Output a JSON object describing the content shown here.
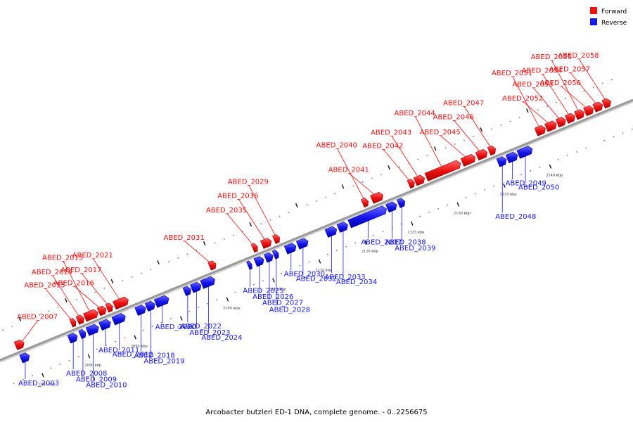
{
  "caption": "Arcobacter butzleri ED-1 DNA, complete genome. - 0..2256675",
  "colors": {
    "forward": "#ee1111",
    "reverse": "#1717ee",
    "backbone": "#9a9a9a"
  },
  "legend": {
    "forward": "Forward",
    "reverse": "Reverse"
  },
  "ticks": [
    {
      "kbp": 2085,
      "label": "2085 kbp"
    },
    {
      "kbp": 2090,
      "label": "2090 kbp"
    },
    {
      "kbp": 2095,
      "label": "2095 kbp"
    },
    {
      "kbp": 2100,
      "label": "2100 kbp"
    },
    {
      "kbp": 2105,
      "label": "2105 kbp"
    },
    {
      "kbp": 2110,
      "label": "2110 kbp"
    },
    {
      "kbp": 2115,
      "label": "2115 kbp"
    },
    {
      "kbp": 2120,
      "label": "2120 kbp"
    },
    {
      "kbp": 2125,
      "label": "2125 kbp"
    },
    {
      "kbp": 2130,
      "label": "2130 kbp"
    },
    {
      "kbp": 2135,
      "label": "2135 kbp"
    },
    {
      "kbp": 2140,
      "label": "2140 kbp"
    }
  ],
  "genes": [
    {
      "name": "ABED_2003",
      "strand": "reverse",
      "start": 2083.6,
      "end": 2084.5
    },
    {
      "name": "ABED_2007",
      "strand": "forward",
      "start": 2083.6,
      "end": 2084.5
    },
    {
      "name": "ABED_2008",
      "strand": "reverse",
      "start": 2088.8,
      "end": 2089.7
    },
    {
      "name": "ABED_2009",
      "strand": "reverse",
      "start": 2090.0,
      "end": 2090.6
    },
    {
      "name": "ABED_2010",
      "strand": "reverse",
      "start": 2090.8,
      "end": 2092.0
    },
    {
      "name": "ABED_2011",
      "strand": "reverse",
      "start": 2092.2,
      "end": 2093.3
    },
    {
      "name": "ABED_2012",
      "strand": "reverse",
      "start": 2093.6,
      "end": 2094.9
    },
    {
      "name": "ABED_2013",
      "strand": "forward",
      "start": 2089.6,
      "end": 2090.1
    },
    {
      "name": "ABED_2014",
      "strand": "forward",
      "start": 2090.3,
      "end": 2091.0
    },
    {
      "name": "ABED_2015",
      "strand": "forward",
      "start": 2091.1,
      "end": 2092.5
    },
    {
      "name": "ABED_2016",
      "strand": "forward",
      "start": 2092.6,
      "end": 2093.4
    },
    {
      "name": "ABED_2017",
      "strand": "forward",
      "start": 2093.5,
      "end": 2094.1
    },
    {
      "name": "ABED_2018",
      "strand": "reverse",
      "start": 2096.1,
      "end": 2097.1
    },
    {
      "name": "ABED_2019",
      "strand": "reverse",
      "start": 2097.2,
      "end": 2098.1
    },
    {
      "name": "ABED_2020",
      "strand": "reverse",
      "start": 2098.2,
      "end": 2099.6
    },
    {
      "name": "ABED_2021",
      "strand": "forward",
      "start": 2094.3,
      "end": 2095.8
    },
    {
      "name": "ABED_2022",
      "strand": "reverse",
      "start": 2101.3,
      "end": 2102.0
    },
    {
      "name": "ABED_2023",
      "strand": "reverse",
      "start": 2102.1,
      "end": 2103.1
    },
    {
      "name": "ABED_2024",
      "strand": "reverse",
      "start": 2103.2,
      "end": 2104.6
    },
    {
      "name": "ABED_2025",
      "strand": "reverse",
      "start": 2108.2,
      "end": 2108.6
    },
    {
      "name": "ABED_2026",
      "strand": "reverse",
      "start": 2109.0,
      "end": 2109.9
    },
    {
      "name": "ABED_2027",
      "strand": "reverse",
      "start": 2110.1,
      "end": 2110.9
    },
    {
      "name": "ABED_2028",
      "strand": "reverse",
      "start": 2111.0,
      "end": 2111.5
    },
    {
      "name": "ABED_2029",
      "strand": "forward",
      "start": 2111.6,
      "end": 2112.2
    },
    {
      "name": "ABED_2030",
      "strand": "reverse",
      "start": 2112.3,
      "end": 2113.4
    },
    {
      "name": "ABED_2031",
      "strand": "forward",
      "start": 2104.6,
      "end": 2105.3
    },
    {
      "name": "ABED_2032",
      "strand": "reverse",
      "start": 2113.6,
      "end": 2114.7
    },
    {
      "name": "ABED_2033",
      "strand": "reverse",
      "start": 2116.7,
      "end": 2117.8
    },
    {
      "name": "ABED_2034",
      "strand": "reverse",
      "start": 2118.0,
      "end": 2119.0
    },
    {
      "name": "ABED_2035",
      "strand": "forward",
      "start": 2109.3,
      "end": 2109.8
    },
    {
      "name": "ABED_2036",
      "strand": "forward",
      "start": 2110.3,
      "end": 2111.3
    },
    {
      "name": "ABED_2037",
      "strand": "reverse",
      "start": 2119.2,
      "end": 2123.2
    },
    {
      "name": "ABED_2038",
      "strand": "reverse",
      "start": 2123.3,
      "end": 2124.3
    },
    {
      "name": "ABED_2039",
      "strand": "reverse",
      "start": 2124.5,
      "end": 2125.2
    },
    {
      "name": "ABED_2040",
      "strand": "forward",
      "start": 2121.2,
      "end": 2121.8
    },
    {
      "name": "ABED_2041",
      "strand": "forward",
      "start": 2122.2,
      "end": 2123.4
    },
    {
      "name": "ABED_2042",
      "strand": "forward",
      "start": 2126.2,
      "end": 2126.8
    },
    {
      "name": "ABED_2043",
      "strand": "forward",
      "start": 2126.9,
      "end": 2127.9
    },
    {
      "name": "ABED_2044",
      "strand": "forward",
      "start": 2128.1,
      "end": 2131.8
    },
    {
      "name": "ABED_2045",
      "strand": "forward",
      "start": 2132.0,
      "end": 2133.4
    },
    {
      "name": "ABED_2046",
      "strand": "forward",
      "start": 2133.6,
      "end": 2134.7
    },
    {
      "name": "ABED_2047",
      "strand": "forward",
      "start": 2134.9,
      "end": 2135.6
    },
    {
      "name": "ABED_2048",
      "strand": "reverse",
      "start": 2135.3,
      "end": 2136.2
    },
    {
      "name": "ABED_2049",
      "strand": "reverse",
      "start": 2136.3,
      "end": 2137.4
    },
    {
      "name": "ABED_2050",
      "strand": "reverse",
      "start": 2137.5,
      "end": 2139.0
    },
    {
      "name": "ABED_2051",
      "strand": "forward",
      "start": 2140.0,
      "end": 2141.0
    },
    {
      "name": "ABED_2052",
      "strand": "forward",
      "start": 2141.1,
      "end": 2142.2
    },
    {
      "name": "ABED_2053",
      "strand": "forward",
      "start": 2142.3,
      "end": 2143.2
    },
    {
      "name": "ABED_2054",
      "strand": "forward",
      "start": 2143.3,
      "end": 2144.2
    },
    {
      "name": "ABED_2055",
      "strand": "forward",
      "start": 2144.3,
      "end": 2145.2
    },
    {
      "name": "ABED_2056",
      "strand": "forward",
      "start": 2145.3,
      "end": 2146.2
    },
    {
      "name": "ABED_2057",
      "strand": "forward",
      "start": 2146.3,
      "end": 2147.2
    },
    {
      "name": "ABED_2058",
      "strand": "forward",
      "start": 2147.3,
      "end": 2148.1
    }
  ]
}
